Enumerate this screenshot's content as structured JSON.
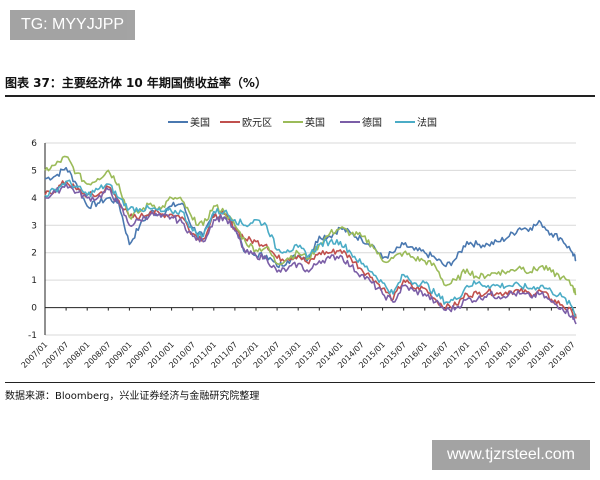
{
  "watermarks": {
    "top_left": "TG: MYYJJPP",
    "bottom_right": "www.tjzrsteel.com"
  },
  "figure_title": "图表 37：主要经济体 10 年期国债收益率（%）",
  "source": "数据来源：Bloomberg，兴业证券经济与金融研究院整理",
  "chart_data": {
    "type": "line",
    "title": "",
    "xlabel": "",
    "ylabel": "",
    "ylim": [
      -1,
      6
    ],
    "yticks": [
      "6",
      "5",
      "4",
      "3",
      "2",
      "1",
      "0",
      "-1"
    ],
    "xticks": [
      "2007/01",
      "2007/07",
      "2008/01",
      "2008/07",
      "2009/01",
      "2009/07",
      "2010/01",
      "2010/07",
      "2011/01",
      "2011/07",
      "2012/01",
      "2012/07",
      "2013/01",
      "2013/07",
      "2014/01",
      "2014/07",
      "2015/01",
      "2015/07",
      "2016/01",
      "2016/07",
      "2017/01",
      "2017/07",
      "2018/01",
      "2018/07",
      "2019/01",
      "2019/07"
    ],
    "grid": true,
    "legend_position": "top",
    "x": [
      "2007/01",
      "2007/04",
      "2007/07",
      "2007/10",
      "2008/01",
      "2008/04",
      "2008/07",
      "2008/10",
      "2009/01",
      "2009/04",
      "2009/07",
      "2009/10",
      "2010/01",
      "2010/04",
      "2010/07",
      "2010/10",
      "2011/01",
      "2011/04",
      "2011/07",
      "2011/10",
      "2012/01",
      "2012/04",
      "2012/07",
      "2012/10",
      "2013/01",
      "2013/04",
      "2013/07",
      "2013/10",
      "2014/01",
      "2014/04",
      "2014/07",
      "2014/10",
      "2015/01",
      "2015/04",
      "2015/07",
      "2015/10",
      "2016/01",
      "2016/04",
      "2016/07",
      "2016/10",
      "2017/01",
      "2017/04",
      "2017/07",
      "2017/10",
      "2018/01",
      "2018/04",
      "2018/07",
      "2018/10",
      "2019/01",
      "2019/04",
      "2019/07",
      "2019/08"
    ],
    "series": [
      {
        "name": "美国",
        "color": "#4a78b0",
        "values": [
          4.7,
          4.8,
          5.1,
          4.5,
          3.7,
          3.8,
          4.0,
          3.8,
          2.3,
          3.0,
          3.5,
          3.4,
          3.7,
          3.8,
          2.9,
          2.6,
          3.4,
          3.3,
          3.0,
          2.0,
          1.9,
          1.9,
          1.5,
          1.7,
          1.9,
          1.8,
          2.6,
          2.6,
          2.9,
          2.7,
          2.5,
          2.3,
          1.8,
          2.0,
          2.3,
          2.1,
          2.0,
          1.8,
          1.5,
          1.8,
          2.4,
          2.3,
          2.3,
          2.4,
          2.6,
          2.9,
          2.9,
          3.1,
          2.7,
          2.5,
          2.0,
          1.7
        ]
      },
      {
        "name": "欧元区",
        "color": "#c0504d",
        "values": [
          4.1,
          4.3,
          4.6,
          4.3,
          4.1,
          4.1,
          4.4,
          3.9,
          3.3,
          3.3,
          3.5,
          3.4,
          3.4,
          3.3,
          2.7,
          2.5,
          3.3,
          3.4,
          2.9,
          2.5,
          2.4,
          2.3,
          1.8,
          1.8,
          1.9,
          1.6,
          2.0,
          2.0,
          2.1,
          1.8,
          1.4,
          1.1,
          0.7,
          0.3,
          1.0,
          0.7,
          0.7,
          0.3,
          0.0,
          0.1,
          0.5,
          0.5,
          0.6,
          0.5,
          0.6,
          0.6,
          0.5,
          0.6,
          0.3,
          0.1,
          -0.2,
          -0.4
        ]
      },
      {
        "name": "英国",
        "color": "#9bbb59",
        "values": [
          5.0,
          5.2,
          5.5,
          4.9,
          4.5,
          4.7,
          5.0,
          4.5,
          3.3,
          3.5,
          3.8,
          3.6,
          4.0,
          3.9,
          3.2,
          3.0,
          3.7,
          3.5,
          3.0,
          2.4,
          2.1,
          2.2,
          1.6,
          1.8,
          2.0,
          1.8,
          2.3,
          2.7,
          2.9,
          2.7,
          2.6,
          2.3,
          1.7,
          1.8,
          2.0,
          1.8,
          1.7,
          1.5,
          0.8,
          1.0,
          1.4,
          1.1,
          1.2,
          1.3,
          1.3,
          1.5,
          1.3,
          1.5,
          1.3,
          1.1,
          0.8,
          0.5
        ]
      },
      {
        "name": "德国",
        "color": "#7b5ea7",
        "values": [
          4.0,
          4.2,
          4.5,
          4.2,
          4.0,
          4.0,
          4.3,
          3.8,
          3.0,
          3.2,
          3.4,
          3.3,
          3.3,
          3.1,
          2.6,
          2.4,
          3.2,
          3.3,
          2.8,
          2.0,
          1.9,
          1.8,
          1.3,
          1.4,
          1.6,
          1.3,
          1.7,
          1.8,
          1.9,
          1.5,
          1.2,
          0.9,
          0.5,
          0.2,
          0.8,
          0.6,
          0.5,
          0.2,
          -0.1,
          0.0,
          0.3,
          0.3,
          0.5,
          0.4,
          0.5,
          0.5,
          0.4,
          0.5,
          0.2,
          0.0,
          -0.3,
          -0.6
        ]
      },
      {
        "name": "法国",
        "color": "#4bacc6",
        "values": [
          4.1,
          4.3,
          4.6,
          4.4,
          4.1,
          4.3,
          4.5,
          4.0,
          3.6,
          3.6,
          3.6,
          3.5,
          3.5,
          3.5,
          2.8,
          2.6,
          3.5,
          3.5,
          3.2,
          3.0,
          3.2,
          3.0,
          2.1,
          2.1,
          2.2,
          1.9,
          2.3,
          2.4,
          2.4,
          2.0,
          1.6,
          1.3,
          0.9,
          0.5,
          1.2,
          0.9,
          0.9,
          0.5,
          0.2,
          0.3,
          0.8,
          0.9,
          0.8,
          0.8,
          0.8,
          0.8,
          0.7,
          0.8,
          0.6,
          0.4,
          0.0,
          -0.3
        ]
      }
    ]
  }
}
